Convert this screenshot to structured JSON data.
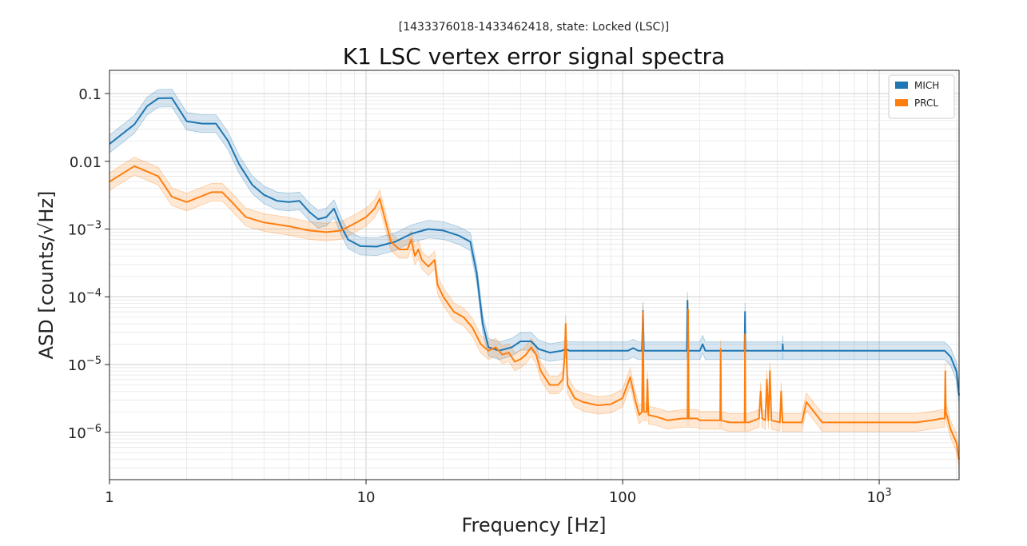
{
  "chart_data": {
    "type": "line",
    "subtitle": "[1433376018-1433462418, state: Locked (LSC)]",
    "title": "K1 LSC vertex error signal spectra",
    "xlabel": "Frequency [Hz]",
    "ylabel": "ASD [counts/√Hz]",
    "xscale": "log",
    "yscale": "log",
    "xlim": [
      1,
      2048
    ],
    "ylim": [
      2e-07,
      0.22
    ],
    "x_ticks": [
      {
        "value": 1,
        "label": "1"
      },
      {
        "value": 10,
        "label": "10"
      },
      {
        "value": 100,
        "label": "100"
      },
      {
        "value": 1000,
        "label": "10",
        "exp": "3"
      }
    ],
    "y_ticks": [
      {
        "value": 0.1,
        "label": "0.1"
      },
      {
        "value": 0.01,
        "label": "0.01"
      },
      {
        "value": 0.001,
        "label": "10",
        "exp": "−3"
      },
      {
        "value": 0.0001,
        "label": "10",
        "exp": "−4"
      },
      {
        "value": 1e-05,
        "label": "10",
        "exp": "−5"
      },
      {
        "value": 1e-06,
        "label": "10",
        "exp": "−6"
      }
    ],
    "grid": true,
    "legend_position": "top-right",
    "series": [
      {
        "name": "MICH",
        "color": "#1f77b4",
        "band_color": "#1f77b4",
        "x": [
          1,
          1.25,
          1.4,
          1.55,
          1.75,
          2.0,
          2.3,
          2.6,
          2.9,
          3.2,
          3.6,
          4.0,
          4.5,
          5.0,
          5.5,
          6.0,
          6.5,
          7.0,
          7.5,
          8.0,
          8.5,
          9.5,
          11,
          13,
          15,
          17.5,
          20,
          23,
          25.5,
          27,
          28.5,
          30,
          33,
          37,
          40,
          44,
          47,
          52,
          58,
          60,
          62,
          65,
          75,
          90,
          105,
          110,
          115,
          119,
          120,
          121,
          125,
          150,
          178,
          179,
          180,
          185,
          200,
          205,
          210,
          250,
          299,
          300,
          301,
          350,
          420,
          421,
          422,
          500,
          700,
          1000,
          1400,
          1800,
          1900,
          2000,
          2048
        ],
        "y": [
          0.018,
          0.035,
          0.065,
          0.085,
          0.086,
          0.039,
          0.036,
          0.036,
          0.02,
          0.009,
          0.0045,
          0.0032,
          0.0026,
          0.0025,
          0.0026,
          0.0018,
          0.0014,
          0.0015,
          0.002,
          0.0011,
          0.0007,
          0.00056,
          0.00055,
          0.00065,
          0.00085,
          0.001,
          0.00095,
          0.0008,
          0.00065,
          0.00022,
          4e-05,
          1.8e-05,
          1.6e-05,
          1.8e-05,
          2.2e-05,
          2.2e-05,
          1.7e-05,
          1.5e-05,
          1.6e-05,
          1.7e-05,
          1.6e-05,
          1.6e-05,
          1.6e-05,
          1.6e-05,
          1.6e-05,
          1.75e-05,
          1.6e-05,
          1.6e-05,
          6.2e-05,
          1.6e-05,
          1.6e-05,
          1.6e-05,
          1.6e-05,
          8.8e-05,
          1.6e-05,
          1.6e-05,
          1.6e-05,
          2e-05,
          1.6e-05,
          1.6e-05,
          1.6e-05,
          6e-05,
          1.6e-05,
          1.6e-05,
          1.6e-05,
          2e-05,
          1.6e-05,
          1.6e-05,
          1.6e-05,
          1.6e-05,
          1.6e-05,
          1.6e-05,
          1.3e-05,
          8e-06,
          3.5e-06
        ]
      },
      {
        "name": "PRCL",
        "color": "#ff7f0e",
        "band_color": "#ff7f0e",
        "x": [
          1,
          1.25,
          1.55,
          1.75,
          2.0,
          2.5,
          2.75,
          3.0,
          3.4,
          4.0,
          5.0,
          6.0,
          7.0,
          8.0,
          9.0,
          10,
          10.8,
          11.3,
          11.8,
          12.5,
          13.5,
          14.5,
          15,
          15.5,
          16,
          16.5,
          17.5,
          18.5,
          19,
          20,
          22,
          24,
          26,
          28,
          30,
          32,
          34,
          36,
          38,
          40,
          42,
          44,
          46,
          48,
          52,
          56,
          58.5,
          59.5,
          60,
          60.5,
          61,
          65,
          70,
          80,
          90,
          100,
          107,
          112,
          116,
          119,
          120,
          121,
          124,
          125,
          126,
          135,
          150,
          170,
          179,
          180,
          181,
          195,
          200,
          240,
          241,
          242,
          260,
          299,
          300,
          301,
          310,
          340,
          345,
          350,
          360,
          365,
          370,
          375,
          380,
          410,
          415,
          420,
          450,
          500,
          520,
          600,
          700,
          800,
          1000,
          1200,
          1400,
          1600,
          1750,
          1800,
          1810,
          1820,
          1900,
          2000,
          2048
        ],
        "y": [
          0.005,
          0.0085,
          0.006,
          0.003,
          0.0025,
          0.0035,
          0.0035,
          0.0025,
          0.0015,
          0.00125,
          0.0011,
          0.00095,
          0.0009,
          0.00095,
          0.0012,
          0.0015,
          0.002,
          0.0028,
          0.0015,
          0.00065,
          0.0005,
          0.0005,
          0.0007,
          0.0004,
          0.0005,
          0.00035,
          0.00028,
          0.00035,
          0.00015,
          0.0001,
          6e-05,
          5e-05,
          3.5e-05,
          2e-05,
          1.6e-05,
          1.8e-05,
          1.4e-05,
          1.5e-05,
          1.1e-05,
          1.2e-05,
          1.4e-05,
          1.8e-05,
          1.4e-05,
          8e-06,
          5e-06,
          5e-06,
          6e-06,
          1.5e-05,
          4e-05,
          1.2e-05,
          5e-06,
          3.2e-06,
          2.8e-06,
          2.5e-06,
          2.6e-06,
          3.2e-06,
          6.5e-06,
          3e-06,
          1.8e-06,
          2e-06,
          6e-05,
          2e-06,
          2e-06,
          6e-06,
          1.8e-06,
          1.7e-06,
          1.5e-06,
          1.6e-06,
          1.6e-06,
          6.5e-05,
          1.6e-06,
          1.6e-06,
          1.5e-06,
          1.5e-06,
          1.7e-05,
          1.5e-06,
          1.4e-06,
          1.4e-06,
          2.8e-05,
          1.4e-06,
          1.4e-06,
          1.6e-06,
          4e-06,
          1.6e-06,
          1.5e-06,
          6e-06,
          1.5e-06,
          8e-06,
          1.5e-06,
          1.4e-06,
          4e-06,
          1.4e-06,
          1.4e-06,
          1.4e-06,
          2.8e-06,
          1.4e-06,
          1.4e-06,
          1.4e-06,
          1.4e-06,
          1.4e-06,
          1.4e-06,
          1.5e-06,
          1.6e-06,
          1.6e-06,
          8e-06,
          2e-06,
          1.1e-06,
          7e-07,
          4e-07
        ]
      }
    ]
  }
}
